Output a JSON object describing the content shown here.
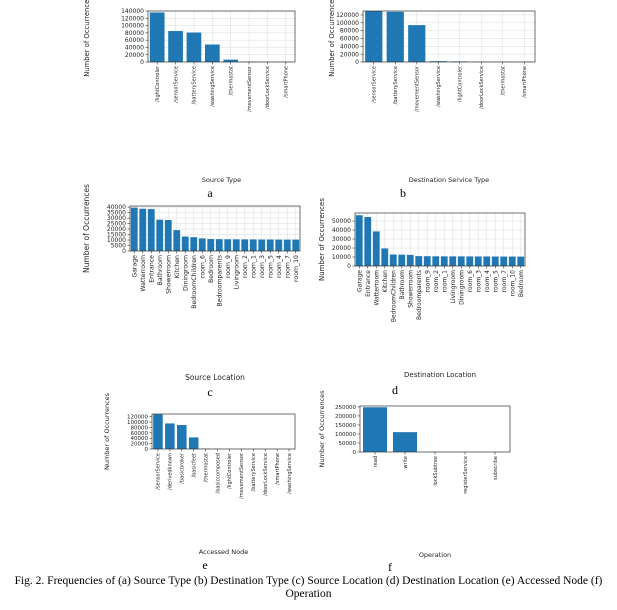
{
  "figure": {
    "caption_line1": "Fig. 2. Frequencies of (a) Source Type (b) Destination Type (c) Source Location (d) Destination Location (e) Accessed Node (f)",
    "caption_line2": "Operation"
  },
  "colors": {
    "bar": "#1f77b4",
    "grid": "#e1e1e1",
    "axis": "#333333"
  },
  "chart_data": [
    {
      "id": "a",
      "letter": "a",
      "type": "bar",
      "xlabel": "Source Type",
      "ylabel": "Number of Occurrences",
      "ylim": [
        0,
        140000
      ],
      "yticks": [
        0,
        20000,
        40000,
        60000,
        80000,
        100000,
        120000,
        140000
      ],
      "grid": true,
      "categories": [
        "/lightControler",
        "/sensorService",
        "/batteryService",
        "/washingService",
        "/thermostat",
        "/movementSensor",
        "/doorLockService",
        "/smartPhone"
      ],
      "values": [
        136000,
        85000,
        81000,
        48000,
        6500,
        1200,
        500,
        400
      ]
    },
    {
      "id": "b",
      "letter": "b",
      "type": "bar",
      "xlabel": "Destination Service Type",
      "ylabel": "Number of Occurrences",
      "ylim": [
        0,
        130000
      ],
      "yticks": [
        0,
        20000,
        40000,
        60000,
        80000,
        100000,
        120000
      ],
      "grid": true,
      "categories": [
        "/sensorService",
        "/batteryService",
        "/movementSensor",
        "/washingService",
        "/lightControler",
        "/doorLockService",
        "/thermostat",
        "/smartPhone"
      ],
      "values": [
        130000,
        128000,
        94000,
        2000,
        1500,
        1000,
        700,
        400
      ]
    },
    {
      "id": "c",
      "letter": "c",
      "type": "bar",
      "xlabel": "Source Location",
      "ylabel": "Number of Occurrences",
      "ylim": [
        0,
        41000
      ],
      "yticks": [
        0,
        5000,
        10000,
        15000,
        20000,
        25000,
        30000,
        35000,
        40000
      ],
      "grid": true,
      "categories": [
        "Garage",
        "Watterroom",
        "Entrance",
        "Bathroom",
        "Showerroom",
        "Kitchen",
        "Diningroom",
        "BedroomChildren",
        "room_6",
        "Bedroom",
        "Bedroomparents",
        "room_9",
        "Livingroom",
        "room_2",
        "room_1",
        "room_3",
        "room_5",
        "room_4",
        "room_7",
        "room_10"
      ],
      "values": [
        39500,
        38500,
        38200,
        28500,
        28300,
        19000,
        13200,
        12600,
        11500,
        10900,
        10800,
        10700,
        10650,
        10600,
        10550,
        10500,
        10500,
        10450,
        10400,
        10400
      ]
    },
    {
      "id": "d",
      "letter": "d",
      "type": "bar",
      "xlabel": "Destination Location",
      "ylabel": "Number of Occurrences",
      "ylim": [
        0,
        59000
      ],
      "yticks": [
        0,
        10000,
        20000,
        30000,
        40000,
        50000
      ],
      "grid": true,
      "categories": [
        "Garage",
        "Entrance",
        "Watterroom",
        "Kitchen",
        "BedroomChildren",
        "Bathroom",
        "Showerroom",
        "Bedroomparents",
        "room_9",
        "room_2",
        "room_1",
        "Livingroom",
        "Diningroom",
        "room_6",
        "room_3",
        "room_4",
        "room_5",
        "room_7",
        "room_10",
        "Bedroom"
      ],
      "values": [
        56500,
        54500,
        38500,
        19500,
        12800,
        12600,
        12400,
        11000,
        10900,
        10800,
        10750,
        10700,
        10700,
        10650,
        10600,
        10600,
        10550,
        10500,
        10500,
        10450
      ]
    },
    {
      "id": "e",
      "letter": "e",
      "type": "bar",
      "xlabel": "Accessed Node",
      "ylabel": "Number of Occurrences",
      "ylim": [
        0,
        130000
      ],
      "yticks": [
        0,
        20000,
        40000,
        60000,
        80000,
        100000,
        120000
      ],
      "grid": false,
      "categories": [
        "/sensorService",
        "/derivedknown",
        "/basicbroker",
        "/basicfeet",
        "/thermostat",
        "/basiccomposed",
        "/lightControler",
        "/movementSensor",
        "/batteryService",
        "/doorLockService",
        "/smartPhone",
        "/washingService"
      ],
      "values": [
        129000,
        95000,
        89000,
        43000,
        1200,
        700,
        500,
        400,
        300,
        300,
        200,
        200
      ]
    },
    {
      "id": "f",
      "letter": "f",
      "type": "bar",
      "xlabel": "Operation",
      "ylabel": "Number of Occurrences",
      "ylim": [
        0,
        255000
      ],
      "yticks": [
        0,
        50000,
        100000,
        150000,
        200000,
        250000
      ],
      "grid": false,
      "categories": [
        "read",
        "write",
        "lockSubtree",
        "registerService",
        "subscribe"
      ],
      "values": [
        248000,
        110000,
        600,
        300,
        200
      ]
    }
  ]
}
